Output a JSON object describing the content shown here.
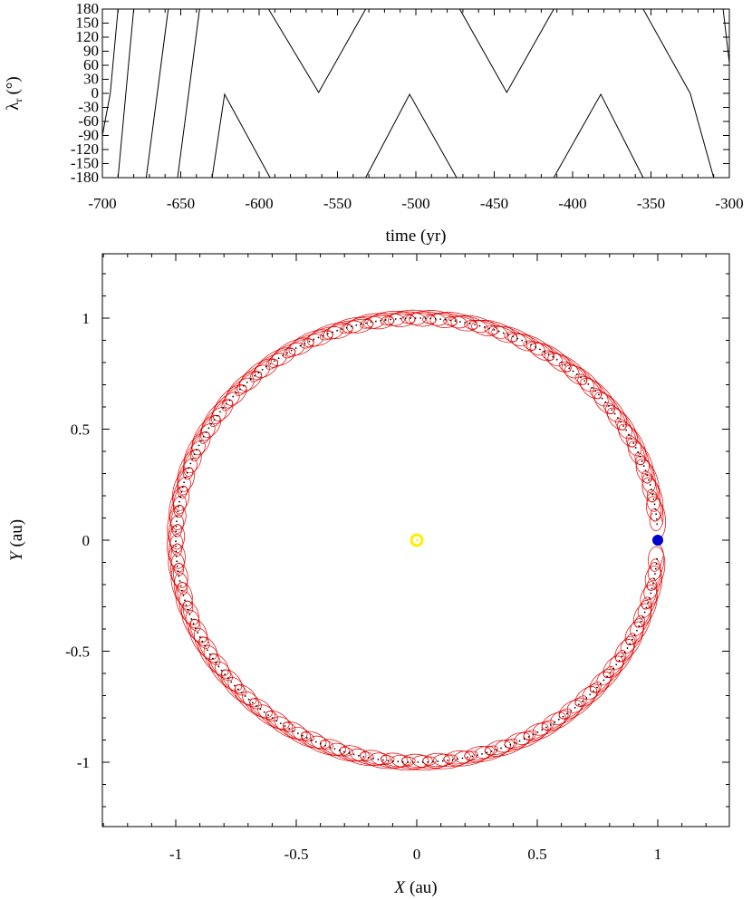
{
  "chart_data": [
    {
      "type": "line",
      "xlabel": "time (yr)",
      "ylabel": "λ",
      "ylabel_sub": "r",
      "ylabel_unit": "(°)",
      "xlim": [
        -700,
        -300
      ],
      "ylim": [
        -180,
        180
      ],
      "x_ticks": [
        -700,
        -650,
        -600,
        -550,
        -500,
        -450,
        -400,
        -350,
        -300
      ],
      "y_ticks": [
        180,
        150,
        120,
        90,
        60,
        30,
        0,
        -30,
        -60,
        -90,
        -120,
        -150,
        -180
      ],
      "line_color": "#000000",
      "series": [
        {
          "x": [
            -700,
            -695,
            -690
          ],
          "y": [
            -90,
            0,
            180
          ]
        },
        {
          "x": [
            -690,
            -685,
            -680
          ],
          "y": [
            -180,
            0,
            180
          ]
        },
        {
          "x": [
            -672,
            -665,
            -658
          ],
          "y": [
            -180,
            0,
            180
          ]
        },
        {
          "x": [
            -652,
            -645,
            -638
          ],
          "y": [
            -180,
            0,
            180
          ]
        },
        {
          "x": [
            -630,
            -622,
            -593
          ],
          "y": [
            -180,
            -2,
            -180
          ]
        },
        {
          "x": [
            -594,
            -562,
            -532
          ],
          "y": [
            180,
            2,
            180
          ]
        },
        {
          "x": [
            -532,
            -504,
            -474
          ],
          "y": [
            -180,
            -2,
            -180
          ]
        },
        {
          "x": [
            -472,
            -442,
            -412
          ],
          "y": [
            180,
            2,
            180
          ]
        },
        {
          "x": [
            -412,
            -382,
            -355
          ],
          "y": [
            -180,
            -2,
            -180
          ]
        },
        {
          "x": [
            -355,
            -340,
            -325,
            -310
          ],
          "y": [
            180,
            90,
            0,
            -180
          ]
        },
        {
          "x": [
            -304,
            -300
          ],
          "y": [
            180,
            65
          ]
        }
      ]
    },
    {
      "type": "scatter",
      "xlabel": "X",
      "xlabel_unit": "(au)",
      "ylabel": "Y",
      "ylabel_unit": "(au)",
      "xlim": [
        -1.3,
        1.3
      ],
      "ylim": [
        -1.3,
        1.3
      ],
      "x_ticks": [
        -1,
        -0.5,
        0,
        0.5,
        1
      ],
      "y_ticks": [
        1,
        0.5,
        0,
        -0.5,
        -1
      ],
      "path_color": "#000000",
      "loop_color": "#e00000",
      "sun": {
        "x": 0,
        "y": 0,
        "color": "#ffee00"
      },
      "earth": {
        "x": 1.0,
        "y": 0.0,
        "color": "#0000cc"
      },
      "orbit": {
        "start_deg": 4,
        "end_deg": 356,
        "radius": 1.0
      },
      "loop_count": 70,
      "loop_amplitude": 0.045
    }
  ]
}
